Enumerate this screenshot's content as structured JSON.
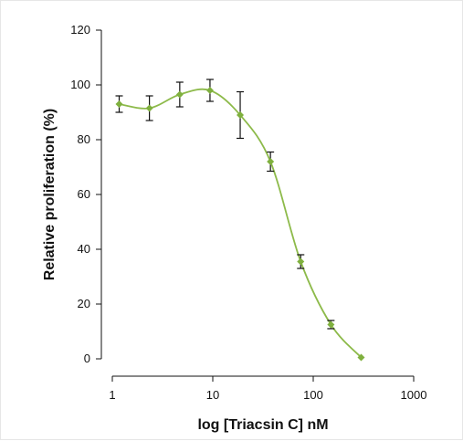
{
  "chart_data": {
    "type": "scatter",
    "title": "",
    "xlabel": "log [Triacsin C] nM",
    "ylabel": "Relative proliferation (%)",
    "xscale": "log",
    "xlim": [
      1,
      1000
    ],
    "ylim": [
      0,
      120
    ],
    "x_ticks": [
      1,
      10,
      100,
      1000
    ],
    "x_tick_labels": [
      "1",
      "10",
      "100",
      "1000"
    ],
    "y_ticks": [
      0,
      20,
      40,
      60,
      80,
      100,
      120
    ],
    "y_tick_labels": [
      "0",
      "20",
      "40",
      "60",
      "80",
      "100",
      "120"
    ],
    "grid": false,
    "legend": "none",
    "series": [
      {
        "x": [
          1.17,
          2.34,
          4.69,
          9.38,
          18.75,
          37.5,
          75,
          150,
          300
        ],
        "y": [
          93,
          91.5,
          96.5,
          98,
          89,
          72,
          35.5,
          12.5,
          0.5
        ],
        "error": [
          3,
          4.5,
          4.5,
          4,
          8.5,
          3.5,
          2.5,
          1.5,
          0
        ],
        "fit_curve": true
      }
    ],
    "colors": {
      "curve": "#8dba4a",
      "marker": "#7fb03e",
      "error_bar": "#111111",
      "axis": "#111111"
    }
  }
}
